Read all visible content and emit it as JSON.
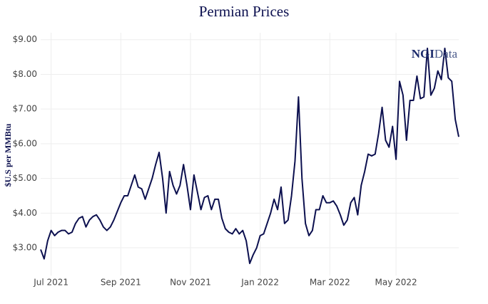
{
  "chart_data": {
    "type": "line",
    "title": "Permian Prices",
    "y_label": "$U.S per MMBtu",
    "watermark": [
      "NGI",
      "Data"
    ],
    "categories": [
      null,
      null,
      null,
      "Jul 2021",
      null,
      null,
      null,
      null,
      null,
      null,
      null,
      null,
      null,
      null,
      null,
      null,
      null,
      null,
      null,
      null,
      null,
      null,
      null,
      "Sep 2021",
      null,
      null,
      null,
      null,
      null,
      null,
      null,
      null,
      null,
      null,
      null,
      null,
      null,
      null,
      null,
      null,
      null,
      null,
      null,
      "Nov 2021",
      null,
      null,
      null,
      null,
      null,
      null,
      null,
      null,
      null,
      null,
      null,
      null,
      null,
      null,
      null,
      null,
      null,
      null,
      null,
      "Jan 2022",
      null,
      null,
      null,
      null,
      null,
      null,
      null,
      null,
      null,
      null,
      null,
      null,
      null,
      null,
      null,
      null,
      null,
      null,
      null,
      "Mar 2022",
      null,
      null,
      null,
      null,
      null,
      null,
      null,
      null,
      null,
      null,
      null,
      null,
      null,
      null,
      null,
      null,
      null,
      null,
      "May 2022",
      null,
      null,
      null,
      null,
      null,
      null,
      null,
      null,
      null,
      null,
      null,
      null,
      null,
      null,
      null,
      null,
      null,
      null
    ],
    "values": [
      2.95,
      2.68,
      3.2,
      3.5,
      3.35,
      3.45,
      3.5,
      3.5,
      3.4,
      3.45,
      3.7,
      3.85,
      3.9,
      3.6,
      3.8,
      3.9,
      3.95,
      3.8,
      3.6,
      3.5,
      3.6,
      3.8,
      4.05,
      4.3,
      4.5,
      4.5,
      4.8,
      5.1,
      4.75,
      4.7,
      4.4,
      4.7,
      5.0,
      5.4,
      5.75,
      5.0,
      4.0,
      5.2,
      4.8,
      4.55,
      4.8,
      5.4,
      4.8,
      4.1,
      5.1,
      4.6,
      4.1,
      4.45,
      4.5,
      4.1,
      4.4,
      4.4,
      3.85,
      3.55,
      3.45,
      3.4,
      3.55,
      3.4,
      3.5,
      3.2,
      2.55,
      2.8,
      3.0,
      3.35,
      3.4,
      3.7,
      4.0,
      4.4,
      4.1,
      4.75,
      3.7,
      3.8,
      4.5,
      5.5,
      7.35,
      5.0,
      3.7,
      3.35,
      3.5,
      4.1,
      4.1,
      4.5,
      4.3,
      4.3,
      4.35,
      4.2,
      3.95,
      3.65,
      3.8,
      4.3,
      4.45,
      3.95,
      4.8,
      5.2,
      5.7,
      5.65,
      5.7,
      6.3,
      7.05,
      6.1,
      5.9,
      6.5,
      5.55,
      7.8,
      7.4,
      6.1,
      7.25,
      7.25,
      7.95,
      7.3,
      7.35,
      8.75,
      7.4,
      7.6,
      8.1,
      7.85,
      8.75,
      7.9,
      7.8,
      6.7,
      6.2
    ],
    "color": "#0c104f",
    "ylim": [
      2.2,
      9.2
    ],
    "yticks": [
      {
        "value": 3,
        "label": "$3.00"
      },
      {
        "value": 4,
        "label": "$4.00"
      },
      {
        "value": 5,
        "label": "$5.00"
      },
      {
        "value": 6,
        "label": "$6.00"
      },
      {
        "value": 7,
        "label": "$7.00"
      },
      {
        "value": 8,
        "label": "$8.00"
      },
      {
        "value": 9,
        "label": "$9.00"
      }
    ],
    "grid": true
  }
}
